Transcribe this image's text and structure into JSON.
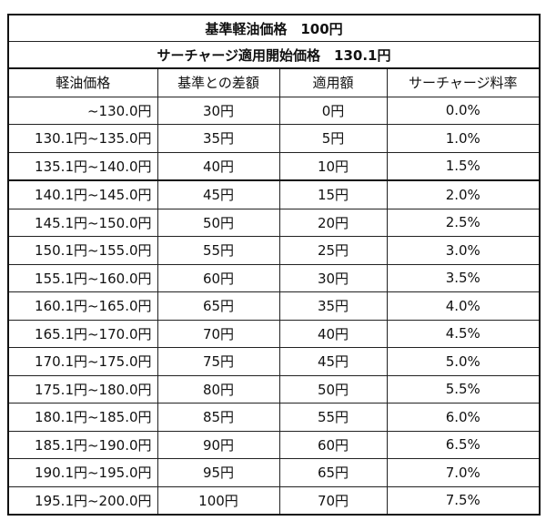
{
  "header": {
    "base_label": "基準軽油価格　100円",
    "start_label": "サーチャージ適用開始価格　130.1円"
  },
  "columns": [
    "軽油価格",
    "基準との差額",
    "適用額",
    "サーチャージ料率"
  ],
  "rows": [
    {
      "range": "~130.0円",
      "diff": "30円",
      "applied": "0円",
      "rate": "0.0%"
    },
    {
      "range": "130.1円~135.0円",
      "diff": "35円",
      "applied": "5円",
      "rate": "1.0%"
    },
    {
      "range": "135.1円~140.0円",
      "diff": "40円",
      "applied": "10円",
      "rate": "1.5%"
    },
    {
      "range": "140.1円~145.0円",
      "diff": "45円",
      "applied": "15円",
      "rate": "2.0%"
    },
    {
      "range": "145.1円~150.0円",
      "diff": "50円",
      "applied": "20円",
      "rate": "2.5%"
    },
    {
      "range": "150.1円~155.0円",
      "diff": "55円",
      "applied": "25円",
      "rate": "3.0%"
    },
    {
      "range": "155.1円~160.0円",
      "diff": "60円",
      "applied": "30円",
      "rate": "3.5%"
    },
    {
      "range": "160.1円~165.0円",
      "diff": "65円",
      "applied": "35円",
      "rate": "4.0%"
    },
    {
      "range": "165.1円~170.0円",
      "diff": "70円",
      "applied": "40円",
      "rate": "4.5%"
    },
    {
      "range": "170.1円~175.0円",
      "diff": "75円",
      "applied": "45円",
      "rate": "5.0%"
    },
    {
      "range": "175.1円~180.0円",
      "diff": "80円",
      "applied": "50円",
      "rate": "5.5%"
    },
    {
      "range": "180.1円~185.0円",
      "diff": "85円",
      "applied": "55円",
      "rate": "6.0%"
    },
    {
      "range": "185.1円~190.0円",
      "diff": "90円",
      "applied": "60円",
      "rate": "6.5%"
    },
    {
      "range": "190.1円~195.0円",
      "diff": "95円",
      "applied": "65円",
      "rate": "7.0%"
    },
    {
      "range": "195.1円~200.0円",
      "diff": "100円",
      "applied": "70円",
      "rate": "7.5%"
    }
  ]
}
